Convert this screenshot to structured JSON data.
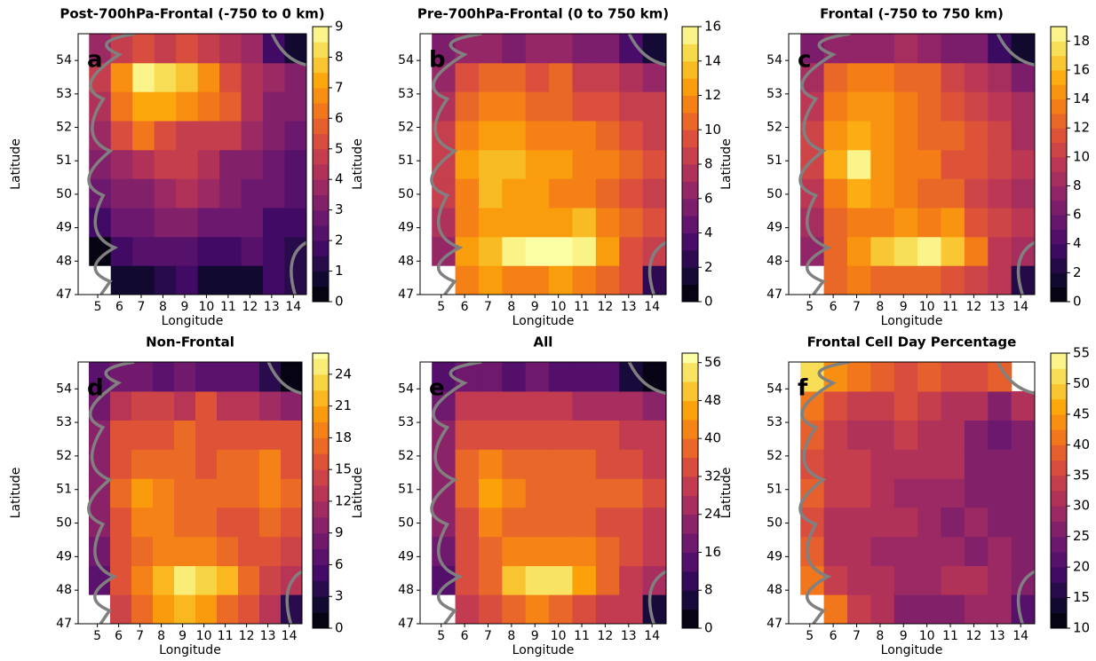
{
  "chart_data": [
    {
      "type": "heatmap",
      "title": "Post-700hPa-Frontal (-750 to 0 km)",
      "label": "a",
      "xlabel": "Longitude",
      "ylabel": "Latitude",
      "xlim": [
        4.1,
        14.6
      ],
      "ylim": [
        47,
        54.8
      ],
      "xticks": [
        5,
        6,
        7,
        8,
        9,
        10,
        11,
        12,
        13,
        14
      ],
      "yticks": [
        47,
        48,
        49,
        50,
        51,
        52,
        53,
        54
      ],
      "x_edges": [
        4.6,
        5.6,
        6.6,
        7.6,
        8.6,
        9.6,
        10.6,
        11.6,
        12.6,
        13.6,
        14.6
      ],
      "y_edges": [
        47,
        47.87,
        48.73,
        49.6,
        50.47,
        51.33,
        52.2,
        53.07,
        53.93,
        54.8
      ],
      "colormap": "inferno",
      "clim": [
        0,
        9
      ],
      "cticks": [
        0,
        1,
        2,
        3,
        4,
        5,
        6,
        7,
        8,
        9
      ],
      "values": [
        [
          null,
          0.5,
          0.8,
          1.2,
          1.5,
          0.8,
          0.5,
          0.8,
          1.5,
          1.0
        ],
        [
          0.3,
          1.5,
          2.0,
          2.2,
          2.0,
          1.8,
          1.5,
          2.0,
          1.5,
          1.2
        ],
        [
          1.5,
          2.5,
          2.8,
          3.0,
          3.2,
          2.5,
          2.8,
          2.5,
          1.8,
          1.5
        ],
        [
          2.5,
          3.0,
          3.2,
          3.8,
          4.0,
          3.5,
          3.0,
          2.8,
          2.5,
          2.0
        ],
        [
          3.0,
          3.5,
          4.0,
          4.8,
          4.5,
          4.2,
          3.2,
          3.0,
          2.5,
          2.2
        ],
        [
          3.5,
          5.0,
          6.0,
          5.0,
          4.8,
          4.5,
          4.5,
          3.8,
          3.0,
          2.5
        ],
        [
          4.0,
          6.0,
          7.0,
          7.2,
          6.5,
          6.0,
          5.5,
          4.0,
          3.2,
          3.0
        ],
        [
          4.5,
          6.5,
          8.8,
          8.0,
          7.5,
          6.8,
          5.0,
          4.2,
          3.5,
          3.0
        ],
        [
          3.5,
          4.5,
          5.0,
          4.8,
          5.0,
          4.5,
          4.0,
          3.5,
          1.5,
          0.5
        ]
      ]
    },
    {
      "type": "heatmap",
      "title": "Pre-700hPa-Frontal (0 to 750 km)",
      "label": "b",
      "xlabel": "Longitude",
      "ylabel": "Latitude",
      "xlim": [
        4.1,
        14.6
      ],
      "ylim": [
        47,
        54.8
      ],
      "xticks": [
        5,
        6,
        7,
        8,
        9,
        10,
        11,
        12,
        13,
        14
      ],
      "yticks": [
        47,
        48,
        49,
        50,
        51,
        52,
        53,
        54
      ],
      "x_edges": [
        4.6,
        5.6,
        6.6,
        7.6,
        8.6,
        9.6,
        10.6,
        11.6,
        12.6,
        13.6,
        14.6
      ],
      "y_edges": [
        47,
        47.87,
        48.73,
        49.6,
        50.47,
        51.33,
        52.2,
        53.07,
        53.93,
        54.8
      ],
      "colormap": "inferno",
      "clim": [
        0,
        16
      ],
      "cticks": [
        0,
        2,
        4,
        6,
        8,
        10,
        12,
        14,
        16
      ],
      "values": [
        [
          null,
          11,
          12,
          11,
          11,
          12,
          11,
          10,
          9,
          2
        ],
        [
          6,
          12,
          13,
          15,
          16,
          16,
          15,
          12,
          9,
          8
        ],
        [
          7,
          11,
          12,
          12,
          12,
          12,
          13,
          11,
          10,
          9
        ],
        [
          8,
          11,
          13,
          12,
          12,
          11,
          11,
          10,
          9,
          8
        ],
        [
          8,
          12,
          13,
          13,
          12,
          12,
          11,
          11,
          10,
          9
        ],
        [
          8,
          11,
          12,
          12,
          11,
          11,
          11,
          10,
          9,
          8
        ],
        [
          7,
          10,
          11,
          11,
          10,
          10,
          9,
          9,
          8,
          8
        ],
        [
          6,
          9,
          10,
          10,
          9,
          10,
          8,
          8,
          7,
          6
        ],
        [
          5,
          6,
          6,
          5,
          6,
          6,
          5,
          5,
          3,
          1
        ]
      ]
    },
    {
      "type": "heatmap",
      "title": "Frontal (-750 to 750 km)",
      "label": "c",
      "xlabel": "Longitude",
      "ylabel": "Latitude",
      "xlim": [
        4.1,
        14.6
      ],
      "ylim": [
        47,
        54.8
      ],
      "xticks": [
        5,
        6,
        7,
        8,
        9,
        10,
        11,
        12,
        13,
        14
      ],
      "yticks": [
        47,
        48,
        49,
        50,
        51,
        52,
        53,
        54
      ],
      "x_edges": [
        4.6,
        5.6,
        6.6,
        7.6,
        8.6,
        9.6,
        10.6,
        11.6,
        12.6,
        13.6,
        14.6
      ],
      "y_edges": [
        47,
        47.87,
        48.73,
        49.6,
        50.47,
        51.33,
        52.2,
        53.07,
        53.93,
        54.8
      ],
      "colormap": "inferno",
      "clim": [
        0,
        19
      ],
      "cticks": [
        0,
        2,
        4,
        6,
        8,
        10,
        12,
        14,
        16,
        18
      ],
      "values": [
        [
          null,
          12,
          13,
          12,
          12,
          12,
          11,
          10,
          9,
          2
        ],
        [
          7,
          12,
          14,
          16,
          17,
          18,
          16,
          13,
          9,
          8
        ],
        [
          8,
          12,
          13,
          13,
          14,
          13,
          14,
          11,
          10,
          9
        ],
        [
          9,
          13,
          15,
          14,
          13,
          12,
          12,
          10,
          9,
          8
        ],
        [
          10,
          15,
          18,
          14,
          13,
          13,
          11,
          11,
          10,
          9
        ],
        [
          10,
          14,
          15,
          14,
          13,
          12,
          12,
          11,
          10,
          8
        ],
        [
          9,
          13,
          14,
          14,
          13,
          12,
          11,
          10,
          9,
          8
        ],
        [
          8,
          12,
          13,
          13,
          12,
          12,
          10,
          9,
          8,
          6
        ],
        [
          6,
          7,
          7,
          7,
          8,
          7,
          6,
          6,
          3,
          1
        ]
      ]
    },
    {
      "type": "heatmap",
      "title": "Non-Frontal",
      "label": "d",
      "xlabel": "Longitude",
      "ylabel": "Latitude",
      "xlim": [
        4.1,
        14.6
      ],
      "ylim": [
        47,
        54.8
      ],
      "xticks": [
        5,
        6,
        7,
        8,
        9,
        10,
        11,
        12,
        13,
        14
      ],
      "yticks": [
        47,
        48,
        49,
        50,
        51,
        52,
        53,
        54
      ],
      "x_edges": [
        4.6,
        5.6,
        6.6,
        7.6,
        8.6,
        9.6,
        10.6,
        11.6,
        12.6,
        13.6,
        14.6
      ],
      "y_edges": [
        47,
        47.87,
        48.73,
        49.6,
        50.47,
        51.33,
        52.2,
        53.07,
        53.93,
        54.8
      ],
      "colormap": "inferno",
      "clim": [
        0,
        26
      ],
      "cticks": [
        0,
        3,
        6,
        9,
        12,
        15,
        18,
        21,
        24
      ],
      "values": [
        [
          null,
          14,
          17,
          20,
          22,
          20,
          17,
          15,
          13,
          3
        ],
        [
          6,
          16,
          19,
          22,
          24,
          23,
          21,
          17,
          14,
          12
        ],
        [
          8,
          15,
          17,
          18,
          18,
          18,
          17,
          16,
          15,
          14
        ],
        [
          10,
          16,
          19,
          18,
          17,
          17,
          16,
          16,
          17,
          15
        ],
        [
          10,
          17,
          20,
          18,
          17,
          17,
          17,
          17,
          18,
          17
        ],
        [
          10,
          16,
          17,
          17,
          17,
          16,
          17,
          17,
          18,
          16
        ],
        [
          9,
          15,
          16,
          16,
          17,
          16,
          15,
          16,
          15,
          16
        ],
        [
          8,
          13,
          14,
          14,
          13,
          15,
          13,
          12,
          11,
          10
        ],
        [
          6,
          8,
          8,
          7,
          8,
          7,
          6,
          6,
          3,
          1
        ]
      ]
    },
    {
      "type": "heatmap",
      "title": "All",
      "label": "e",
      "xlabel": "Longitude",
      "ylabel": "Latitude",
      "xlim": [
        4.1,
        14.6
      ],
      "ylim": [
        47,
        54.8
      ],
      "xticks": [
        5,
        6,
        7,
        8,
        9,
        10,
        11,
        12,
        13,
        14
      ],
      "yticks": [
        47,
        48,
        49,
        50,
        51,
        52,
        53,
        54
      ],
      "x_edges": [
        4.6,
        5.6,
        6.6,
        7.6,
        8.6,
        9.6,
        10.6,
        11.6,
        12.6,
        13.6,
        14.6
      ],
      "y_edges": [
        47,
        47.87,
        48.73,
        49.6,
        50.47,
        51.33,
        52.2,
        53.07,
        53.93,
        54.8
      ],
      "colormap": "inferno",
      "clim": [
        0,
        58
      ],
      "cticks": [
        0,
        8,
        16,
        24,
        32,
        40,
        48,
        56
      ],
      "values": [
        [
          null,
          30,
          35,
          38,
          40,
          38,
          33,
          30,
          28,
          6
        ],
        [
          14,
          33,
          38,
          48,
          55,
          54,
          46,
          37,
          28,
          24
        ],
        [
          18,
          33,
          37,
          40,
          40,
          40,
          40,
          36,
          34,
          30
        ],
        [
          22,
          35,
          40,
          38,
          38,
          37,
          36,
          35,
          33,
          30
        ],
        [
          22,
          38,
          45,
          40,
          38,
          37,
          36,
          38,
          37,
          33
        ],
        [
          22,
          37,
          40,
          38,
          37,
          36,
          36,
          35,
          34,
          30
        ],
        [
          20,
          33,
          35,
          35,
          35,
          34,
          32,
          32,
          30,
          28
        ],
        [
          18,
          28,
          30,
          30,
          28,
          30,
          27,
          26,
          24,
          20
        ],
        [
          12,
          16,
          16,
          15,
          17,
          15,
          14,
          13,
          6,
          2
        ]
      ]
    },
    {
      "type": "heatmap",
      "title": "Frontal Cell Day Percentage",
      "label": "f",
      "xlabel": "Longitude",
      "ylabel": "Latitude",
      "xlim": [
        4.1,
        14.6
      ],
      "ylim": [
        47,
        54.8
      ],
      "xticks": [
        5,
        6,
        7,
        8,
        9,
        10,
        11,
        12,
        13,
        14
      ],
      "yticks": [
        47,
        48,
        49,
        50,
        51,
        52,
        53,
        54
      ],
      "x_edges": [
        4.6,
        5.6,
        6.6,
        7.6,
        8.6,
        9.6,
        10.6,
        11.6,
        12.6,
        13.6,
        14.6
      ],
      "y_edges": [
        47,
        47.87,
        48.73,
        49.6,
        50.47,
        51.33,
        52.2,
        53.07,
        53.93,
        54.8
      ],
      "colormap": "inferno",
      "clim": [
        10,
        55
      ],
      "cticks": [
        10,
        15,
        20,
        25,
        30,
        35,
        40,
        45,
        50,
        55
      ],
      "values": [
        [
          null,
          40,
          33,
          30,
          27,
          26,
          27,
          28,
          29,
          20
        ],
        [
          40,
          33,
          30,
          30,
          28,
          29,
          30,
          30,
          28,
          27
        ],
        [
          38,
          30,
          30,
          28,
          29,
          29,
          28,
          27,
          28,
          26
        ],
        [
          37,
          30,
          32,
          32,
          30,
          28,
          27,
          28,
          25,
          27
        ],
        [
          38,
          33,
          34,
          30,
          29,
          29,
          28,
          27,
          25,
          27
        ],
        [
          37,
          33,
          33,
          31,
          30,
          30,
          30,
          27,
          25,
          26
        ],
        [
          38,
          34,
          32,
          32,
          33,
          31,
          30,
          26,
          24,
          26
        ],
        [
          42,
          35,
          34,
          34,
          35,
          34,
          31,
          30,
          26,
          31
        ],
        [
          52,
          44,
          40,
          38,
          36,
          38,
          37,
          36,
          38,
          null
        ]
      ]
    }
  ]
}
